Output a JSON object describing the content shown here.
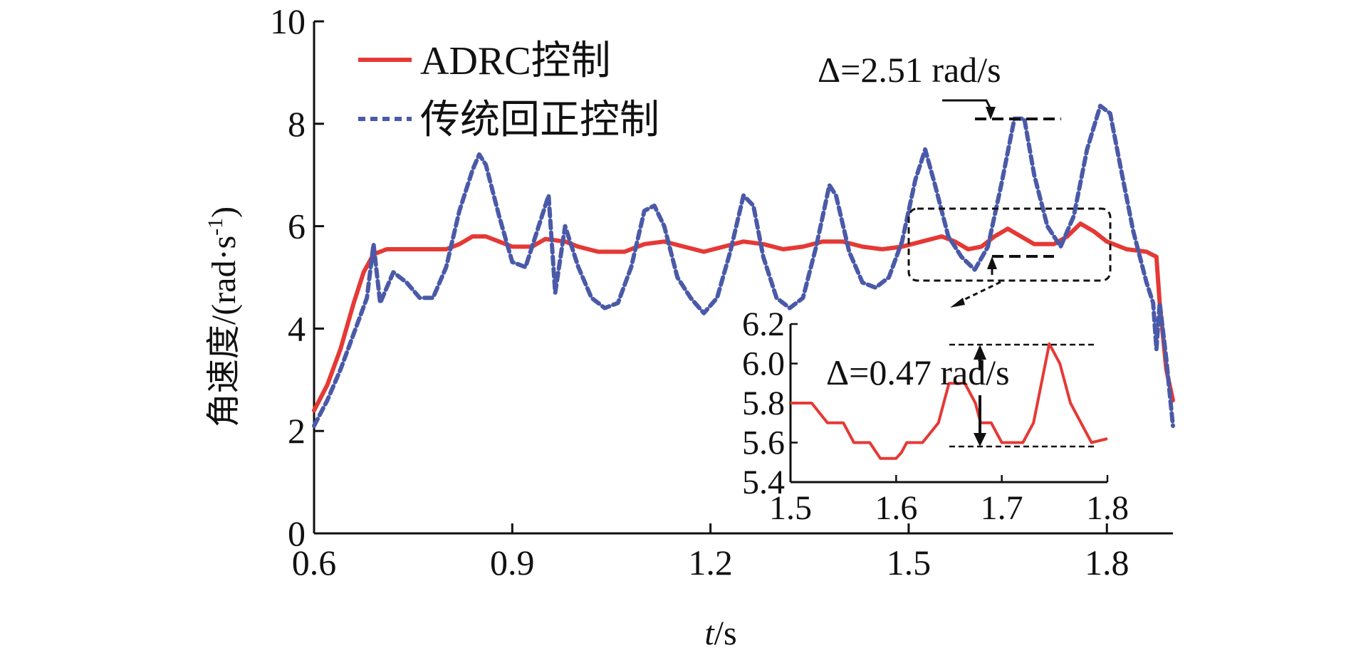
{
  "chart_data": {
    "type": "line",
    "xlabel_var": "t",
    "xlabel_unit": "/s",
    "ylabel": "角速度/(rad·s",
    "ylabel_sup": "-1",
    "ylabel_close": ")",
    "xlim": [
      0.6,
      1.9
    ],
    "ylim": [
      0,
      10
    ],
    "xticks": [
      "0.6",
      "0.9",
      "1.2",
      "1.5",
      "1.8"
    ],
    "yticks": [
      "0",
      "2",
      "4",
      "6",
      "8",
      "10"
    ],
    "legend_position": "top-left",
    "grid": false,
    "series": [
      {
        "name": "ADRC控制",
        "color": "#e53935",
        "style": "solid",
        "points": [
          [
            0.6,
            2.4
          ],
          [
            0.62,
            2.9
          ],
          [
            0.64,
            3.6
          ],
          [
            0.66,
            4.5
          ],
          [
            0.675,
            5.1
          ],
          [
            0.69,
            5.45
          ],
          [
            0.71,
            5.55
          ],
          [
            0.75,
            5.55
          ],
          [
            0.8,
            5.55
          ],
          [
            0.82,
            5.65
          ],
          [
            0.84,
            5.8
          ],
          [
            0.86,
            5.8
          ],
          [
            0.88,
            5.7
          ],
          [
            0.9,
            5.6
          ],
          [
            0.93,
            5.6
          ],
          [
            0.95,
            5.75
          ],
          [
            0.98,
            5.7
          ],
          [
            1.0,
            5.6
          ],
          [
            1.03,
            5.5
          ],
          [
            1.07,
            5.5
          ],
          [
            1.1,
            5.65
          ],
          [
            1.13,
            5.7
          ],
          [
            1.16,
            5.6
          ],
          [
            1.19,
            5.5
          ],
          [
            1.22,
            5.6
          ],
          [
            1.25,
            5.7
          ],
          [
            1.28,
            5.65
          ],
          [
            1.31,
            5.55
          ],
          [
            1.34,
            5.6
          ],
          [
            1.37,
            5.7
          ],
          [
            1.4,
            5.7
          ],
          [
            1.43,
            5.6
          ],
          [
            1.46,
            5.55
          ],
          [
            1.49,
            5.6
          ],
          [
            1.52,
            5.7
          ],
          [
            1.55,
            5.8
          ],
          [
            1.57,
            5.7
          ],
          [
            1.59,
            5.55
          ],
          [
            1.61,
            5.6
          ],
          [
            1.63,
            5.8
          ],
          [
            1.65,
            5.95
          ],
          [
            1.67,
            5.8
          ],
          [
            1.69,
            5.65
          ],
          [
            1.72,
            5.65
          ],
          [
            1.74,
            5.8
          ],
          [
            1.76,
            6.05
          ],
          [
            1.78,
            5.9
          ],
          [
            1.8,
            5.7
          ],
          [
            1.83,
            5.55
          ],
          [
            1.86,
            5.5
          ],
          [
            1.875,
            5.4
          ],
          [
            1.88,
            4.5
          ],
          [
            1.89,
            3.2
          ],
          [
            1.9,
            2.6
          ]
        ]
      },
      {
        "name": "传统回正控制",
        "color": "#4a5aa8",
        "style": "dashed",
        "points": [
          [
            0.6,
            2.1
          ],
          [
            0.62,
            2.6
          ],
          [
            0.64,
            3.2
          ],
          [
            0.66,
            3.9
          ],
          [
            0.68,
            4.6
          ],
          [
            0.69,
            5.65
          ],
          [
            0.7,
            4.5
          ],
          [
            0.72,
            5.1
          ],
          [
            0.74,
            4.9
          ],
          [
            0.76,
            4.6
          ],
          [
            0.78,
            4.6
          ],
          [
            0.8,
            5.2
          ],
          [
            0.82,
            6.3
          ],
          [
            0.84,
            7.1
          ],
          [
            0.85,
            7.4
          ],
          [
            0.86,
            7.2
          ],
          [
            0.88,
            6.2
          ],
          [
            0.9,
            5.3
          ],
          [
            0.92,
            5.2
          ],
          [
            0.94,
            6.0
          ],
          [
            0.955,
            6.6
          ],
          [
            0.965,
            4.7
          ],
          [
            0.98,
            6.0
          ],
          [
            1.0,
            5.2
          ],
          [
            1.02,
            4.6
          ],
          [
            1.04,
            4.4
          ],
          [
            1.06,
            4.5
          ],
          [
            1.08,
            5.2
          ],
          [
            1.1,
            6.3
          ],
          [
            1.115,
            6.4
          ],
          [
            1.13,
            6.0
          ],
          [
            1.15,
            5.0
          ],
          [
            1.17,
            4.6
          ],
          [
            1.19,
            4.3
          ],
          [
            1.21,
            4.6
          ],
          [
            1.23,
            5.5
          ],
          [
            1.25,
            6.6
          ],
          [
            1.265,
            6.4
          ],
          [
            1.28,
            5.4
          ],
          [
            1.3,
            4.6
          ],
          [
            1.32,
            4.4
          ],
          [
            1.34,
            4.6
          ],
          [
            1.36,
            5.6
          ],
          [
            1.38,
            6.8
          ],
          [
            1.39,
            6.6
          ],
          [
            1.41,
            5.5
          ],
          [
            1.43,
            4.9
          ],
          [
            1.45,
            4.8
          ],
          [
            1.47,
            5.0
          ],
          [
            1.49,
            5.7
          ],
          [
            1.51,
            6.9
          ],
          [
            1.525,
            7.5
          ],
          [
            1.54,
            6.8
          ],
          [
            1.56,
            5.8
          ],
          [
            1.58,
            5.4
          ],
          [
            1.6,
            5.15
          ],
          [
            1.62,
            5.6
          ],
          [
            1.64,
            6.8
          ],
          [
            1.66,
            8.1
          ],
          [
            1.675,
            8.1
          ],
          [
            1.69,
            7.0
          ],
          [
            1.71,
            6.0
          ],
          [
            1.73,
            5.6
          ],
          [
            1.75,
            6.2
          ],
          [
            1.77,
            7.5
          ],
          [
            1.79,
            8.35
          ],
          [
            1.805,
            8.2
          ],
          [
            1.82,
            7.2
          ],
          [
            1.84,
            5.9
          ],
          [
            1.86,
            4.9
          ],
          [
            1.87,
            4.5
          ],
          [
            1.875,
            3.6
          ],
          [
            1.88,
            4.5
          ],
          [
            1.89,
            3.4
          ],
          [
            1.9,
            2.1
          ]
        ]
      }
    ],
    "annotations": [
      {
        "text": "Δ=2.51 rad/s"
      },
      {
        "text": "Δ=0.47 rad/s"
      }
    ],
    "inset": {
      "xlim": [
        1.5,
        1.8
      ],
      "ylim": [
        5.4,
        6.2
      ],
      "xticks": [
        "1.5",
        "1.6",
        "1.7",
        "1.8"
      ],
      "yticks": [
        "5.4",
        "5.6",
        "5.8",
        "6.0",
        "6.2"
      ],
      "points": [
        [
          1.5,
          5.8
        ],
        [
          1.52,
          5.8
        ],
        [
          1.535,
          5.7
        ],
        [
          1.55,
          5.7
        ],
        [
          1.56,
          5.6
        ],
        [
          1.575,
          5.6
        ],
        [
          1.585,
          5.52
        ],
        [
          1.6,
          5.52
        ],
        [
          1.605,
          5.55
        ],
        [
          1.61,
          5.6
        ],
        [
          1.625,
          5.6
        ],
        [
          1.64,
          5.7
        ],
        [
          1.65,
          5.9
        ],
        [
          1.665,
          5.9
        ],
        [
          1.675,
          5.8
        ],
        [
          1.68,
          5.7
        ],
        [
          1.69,
          5.7
        ],
        [
          1.7,
          5.6
        ],
        [
          1.72,
          5.6
        ],
        [
          1.73,
          5.7
        ],
        [
          1.745,
          6.1
        ],
        [
          1.755,
          6.0
        ],
        [
          1.765,
          5.8
        ],
        [
          1.775,
          5.7
        ],
        [
          1.785,
          5.6
        ],
        [
          1.8,
          5.62
        ]
      ]
    }
  }
}
